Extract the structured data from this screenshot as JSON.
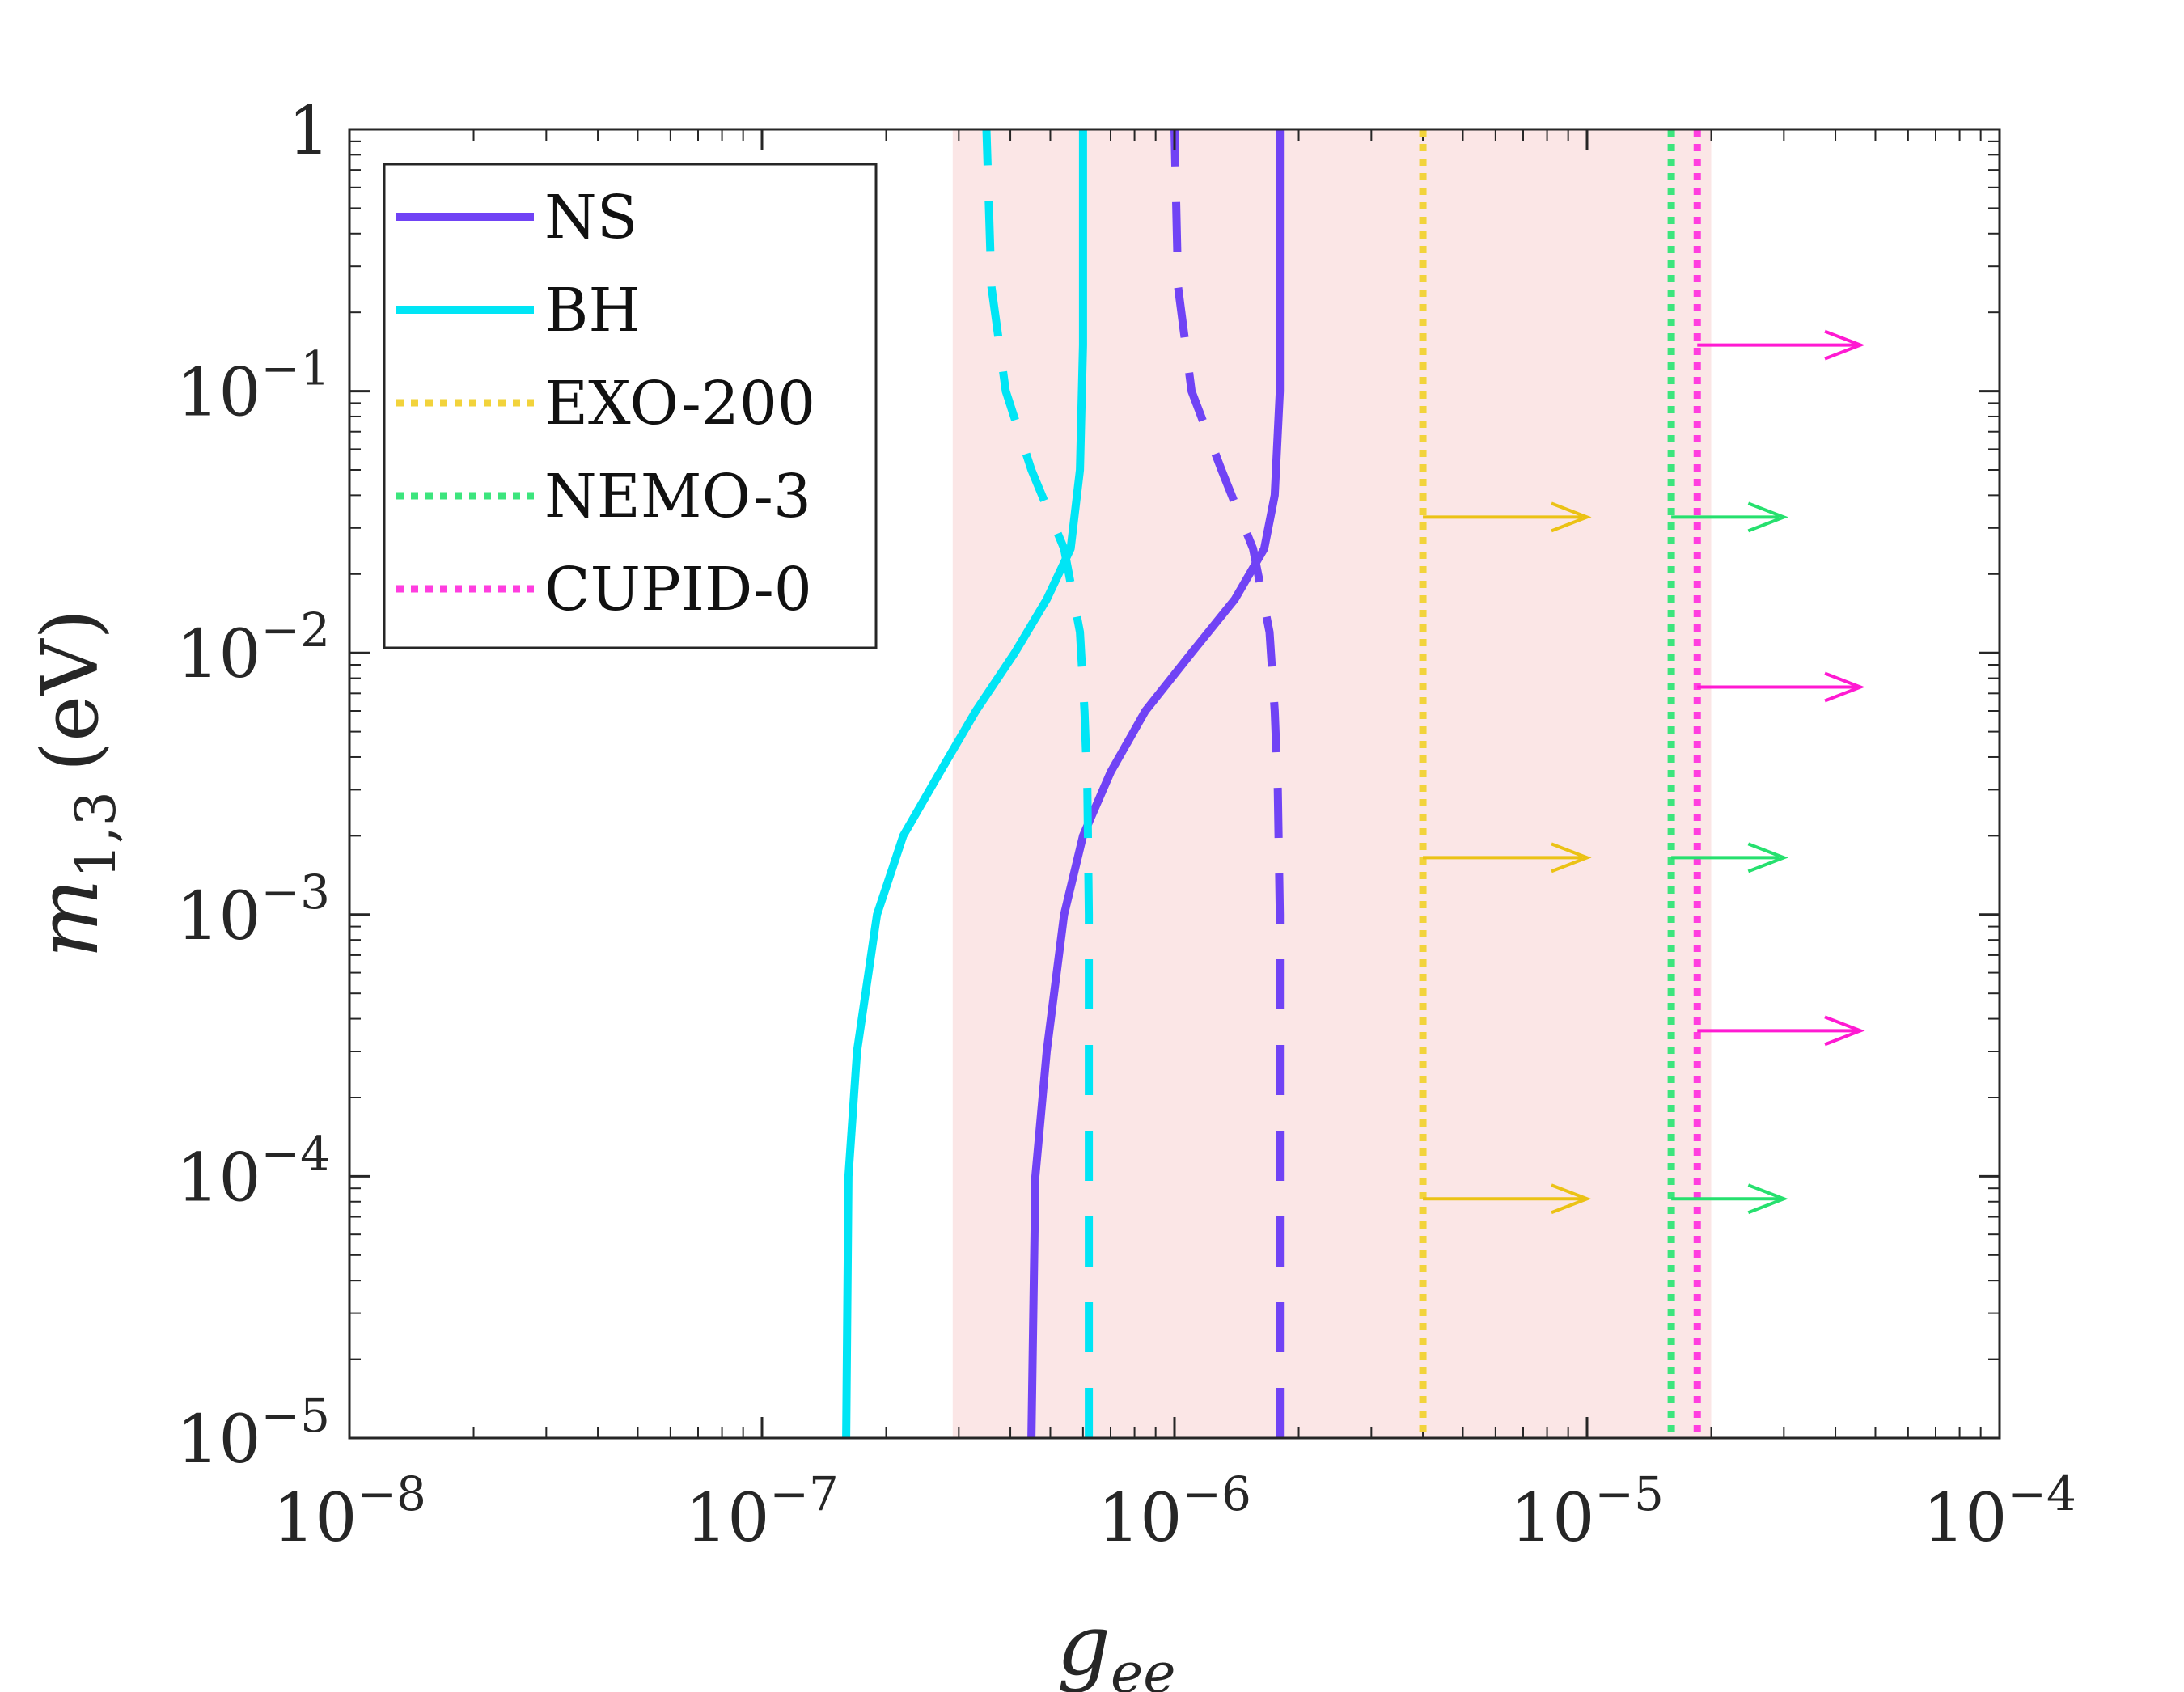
{
  "chart_data": {
    "type": "line",
    "xscale": "log",
    "yscale": "log",
    "xlim": [
      1e-08,
      0.0001
    ],
    "ylim": [
      1e-05,
      1
    ],
    "xlabel": {
      "base": "g",
      "sub": "ee"
    },
    "ylabel": {
      "base": "m",
      "sub": "1,3",
      "unit": "(eV)"
    },
    "x_ticks": [
      {
        "value": 1e-08,
        "base": "10",
        "exp": "−8"
      },
      {
        "value": 1e-07,
        "base": "10",
        "exp": "−7"
      },
      {
        "value": 1e-06,
        "base": "10",
        "exp": "−6"
      },
      {
        "value": 1e-05,
        "base": "10",
        "exp": "−5"
      },
      {
        "value": 0.0001,
        "base": "10",
        "exp": "−4"
      }
    ],
    "y_ticks": [
      {
        "value": 1e-05,
        "base": "10",
        "exp": "−5"
      },
      {
        "value": 0.0001,
        "base": "10",
        "exp": "−4"
      },
      {
        "value": 0.001,
        "base": "10",
        "exp": "−3"
      },
      {
        "value": 0.01,
        "base": "10",
        "exp": "−2"
      },
      {
        "value": 0.1,
        "base": "10",
        "exp": "−1"
      },
      {
        "value": 1,
        "base": "1",
        "exp": ""
      }
    ],
    "shaded_region": {
      "x": [
        2.9e-07,
        2e-05
      ],
      "color": "#fbe6e6"
    },
    "series": [
      {
        "name": "NS",
        "color": "#7043f5",
        "style": "solid",
        "points": [
          [
            4.5e-07,
            1e-05
          ],
          [
            4.6e-07,
            0.0001
          ],
          [
            4.9e-07,
            0.0003
          ],
          [
            5.4e-07,
            0.001
          ],
          [
            6e-07,
            0.002
          ],
          [
            7e-07,
            0.0035
          ],
          [
            8.5e-07,
            0.006
          ],
          [
            1.1e-06,
            0.01
          ],
          [
            1.4e-06,
            0.016
          ],
          [
            1.65e-06,
            0.025
          ],
          [
            1.75e-06,
            0.04
          ],
          [
            1.8e-06,
            0.1
          ],
          [
            1.8e-06,
            1
          ]
        ]
      },
      {
        "name": "NS (dashed)",
        "color": "#7043f5",
        "style": "dashed",
        "legend": false,
        "points": [
          [
            1.8e-06,
            1e-05
          ],
          [
            1.8e-06,
            0.001
          ],
          [
            1.78e-06,
            0.003
          ],
          [
            1.75e-06,
            0.006
          ],
          [
            1.7e-06,
            0.012
          ],
          [
            1.55e-06,
            0.025
          ],
          [
            1.3e-06,
            0.05
          ],
          [
            1.1e-06,
            0.1
          ],
          [
            1.02e-06,
            0.25
          ],
          [
            1e-06,
            1
          ]
        ]
      },
      {
        "name": "BH",
        "color": "#00e5f5",
        "style": "solid",
        "points": [
          [
            1.6e-07,
            1e-05
          ],
          [
            1.62e-07,
            0.0001
          ],
          [
            1.7e-07,
            0.0003
          ],
          [
            1.9e-07,
            0.001
          ],
          [
            2.2e-07,
            0.002
          ],
          [
            2.7e-07,
            0.0035
          ],
          [
            3.3e-07,
            0.006
          ],
          [
            4.1e-07,
            0.01
          ],
          [
            4.9e-07,
            0.016
          ],
          [
            5.6e-07,
            0.025
          ],
          [
            5.9e-07,
            0.05
          ],
          [
            6e-07,
            0.15
          ],
          [
            6e-07,
            1
          ]
        ]
      },
      {
        "name": "BH (dashed)",
        "color": "#00e5f5",
        "style": "dashed",
        "legend": false,
        "points": [
          [
            6.2e-07,
            1e-05
          ],
          [
            6.2e-07,
            0.001
          ],
          [
            6.15e-07,
            0.003
          ],
          [
            6.05e-07,
            0.006
          ],
          [
            5.9e-07,
            0.012
          ],
          [
            5.4e-07,
            0.025
          ],
          [
            4.5e-07,
            0.05
          ],
          [
            3.9e-07,
            0.1
          ],
          [
            3.6e-07,
            0.25
          ],
          [
            3.5e-07,
            1
          ]
        ]
      },
      {
        "name": "EXO-200",
        "color": "#f2d33b",
        "style": "dotted",
        "x": 4e-06
      },
      {
        "name": "NEMO-3",
        "color": "#3ce57d",
        "style": "dotted",
        "x": 1.6e-05
      },
      {
        "name": "CUPID-0",
        "color": "#ff3ddf",
        "style": "dotted",
        "x": 1.85e-05
      }
    ],
    "arrows": [
      {
        "series": "EXO-200",
        "color": "#ebc215",
        "from_x": 4e-06,
        "to_x": 1e-05,
        "y": [
          0.033,
          0.00165,
          8.2e-05
        ]
      },
      {
        "series": "NEMO-3",
        "color": "#26e06e",
        "from_x": 1.6e-05,
        "to_x": 3e-05,
        "y": [
          0.033,
          0.00165,
          8.2e-05
        ]
      },
      {
        "series": "CUPID-0",
        "color": "#ff1ad2",
        "from_x": 1.85e-05,
        "to_x": 4.6e-05,
        "y": [
          0.15,
          0.0074,
          0.00036
        ]
      }
    ],
    "legend": {
      "position": "top-left",
      "entries": [
        {
          "label": "NS",
          "color": "#7043f5",
          "style": "solid"
        },
        {
          "label": "BH",
          "color": "#00e5f5",
          "style": "solid"
        },
        {
          "label": "EXO-200",
          "color": "#f2d33b",
          "style": "dotted"
        },
        {
          "label": "NEMO-3",
          "color": "#3ce57d",
          "style": "dotted"
        },
        {
          "label": "CUPID-0",
          "color": "#ff3ddf",
          "style": "dotted"
        }
      ]
    }
  }
}
